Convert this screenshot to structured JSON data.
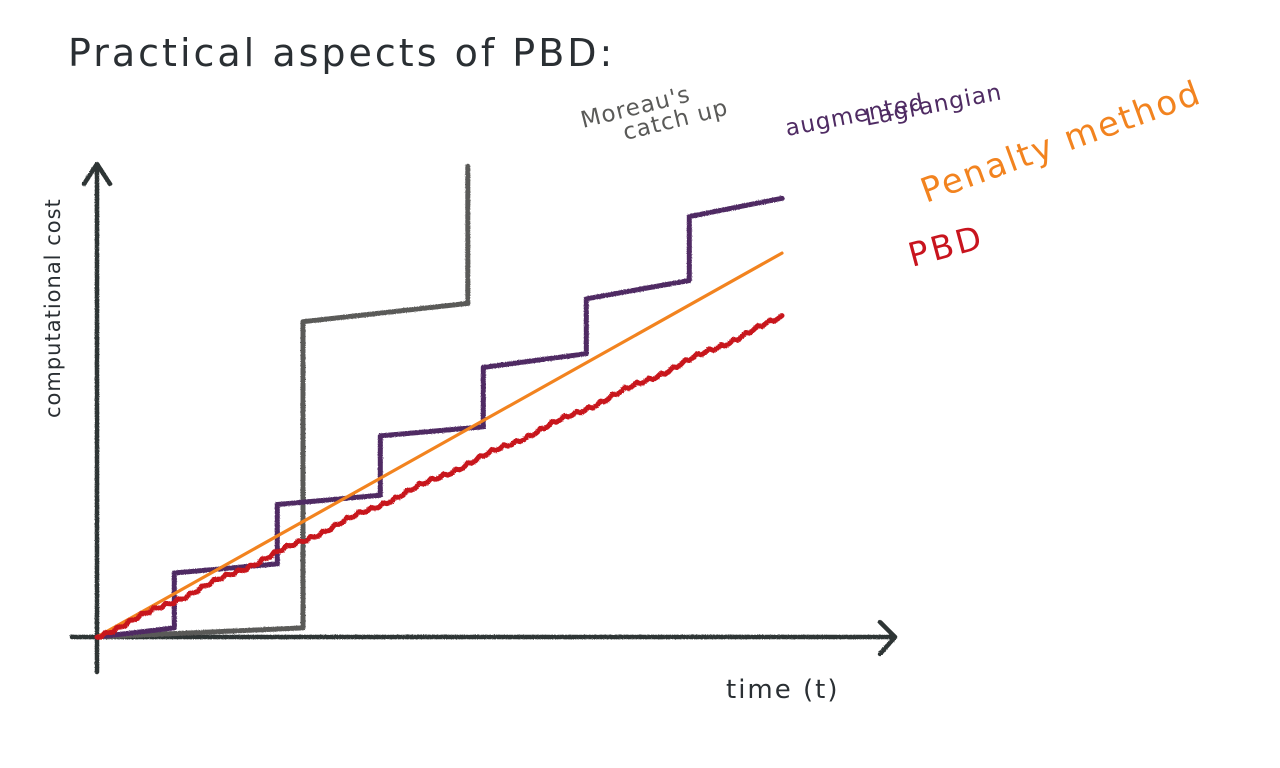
{
  "chart_data": {
    "type": "line",
    "title": "Practical aspects of PBD:",
    "xlabel": "time (t)",
    "ylabel": "computational cost",
    "xlim": [
      0,
      8
    ],
    "ylim": [
      0,
      10
    ],
    "grid": false,
    "series": [
      {
        "name": "Moreau's catch up",
        "label_lines": [
          "Moreau's",
          "catch up"
        ],
        "color": "#5a5a58",
        "style": "step",
        "points": [
          [
            0,
            0
          ],
          [
            2,
            0.2
          ],
          [
            2,
            6.9
          ],
          [
            3.6,
            7.3
          ],
          [
            3.6,
            10.3
          ]
        ]
      },
      {
        "name": "augmented Lagrangian",
        "label_lines": [
          "augmented",
          "Lagrangian"
        ],
        "color": "#4f2b63",
        "style": "step",
        "points": [
          [
            0,
            0
          ],
          [
            0.75,
            0.2
          ],
          [
            0.75,
            1.4
          ],
          [
            1.75,
            1.6
          ],
          [
            1.75,
            2.9
          ],
          [
            2.75,
            3.1
          ],
          [
            2.75,
            4.4
          ],
          [
            3.75,
            4.6
          ],
          [
            3.75,
            5.9
          ],
          [
            4.75,
            6.2
          ],
          [
            4.75,
            7.4
          ],
          [
            5.75,
            7.8
          ],
          [
            5.75,
            9.2
          ],
          [
            6.65,
            9.6
          ]
        ]
      },
      {
        "name": "Penalty method",
        "label_lines": [
          "Penalty method"
        ],
        "color": "#f2831f",
        "style": "line",
        "points": [
          [
            0,
            0
          ],
          [
            6.65,
            8.4
          ]
        ]
      },
      {
        "name": "PBD",
        "label_lines": [
          "PBD"
        ],
        "color": "#c8141e",
        "style": "wavy",
        "points": [
          [
            0,
            0
          ],
          [
            6.65,
            7.0
          ]
        ]
      }
    ]
  }
}
